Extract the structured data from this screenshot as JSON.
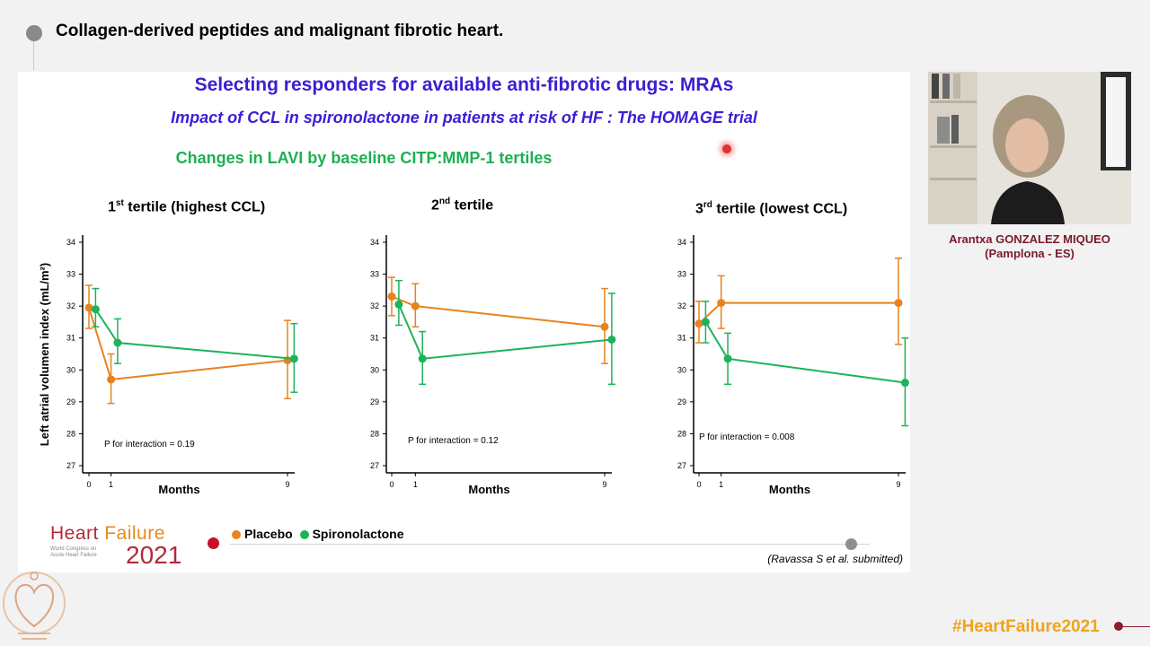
{
  "header": {
    "talk_title": "Collagen-derived peptides and malignant fibrotic heart."
  },
  "slide": {
    "heading": "Selecting responders for available anti-fibrotic drugs: MRAs",
    "subheading": "Impact of CCL in spironolactone in patients at risk of HF : The HOMAGE trial",
    "chart_caption": "Changes in LAVI by baseline CITP:MMP-1 tertiles",
    "legend": {
      "placebo": "Placebo",
      "spironolactone": "Spironolactone"
    },
    "citation": "(Ravassa S et al. submitted)",
    "logo": {
      "word1": "Heart",
      "word2": "Failure",
      "year": "2021",
      "small_text": "World Congress on Acute Heart Failure"
    },
    "colors": {
      "placebo": "#e8821e",
      "spironolactone": "#1db35a",
      "heading": "#3a1fd4",
      "caption": "#1db053"
    }
  },
  "panels": [
    {
      "title_pre": "1",
      "title_sup": "st",
      "title_post": " tertile (highest CCL)",
      "p_text": "P for interaction = 0.19"
    },
    {
      "title_pre": "2",
      "title_sup": "nd",
      "title_post": " tertile",
      "p_text": "P for interaction = 0.12"
    },
    {
      "title_pre": "3",
      "title_sup": "rd",
      "title_post": " tertile (lowest CCL)",
      "p_text": "P for interaction = 0.008"
    }
  ],
  "chart_data": [
    {
      "type": "line",
      "title": "1st tertile (highest CCL)",
      "xlabel": "Months",
      "ylabel": "Left atrial volumen index (mL/m²)",
      "x_ticks": [
        "0",
        "1",
        "9"
      ],
      "y_ticks": [
        "27",
        "28",
        "29",
        "30",
        "31",
        "32",
        "33",
        "34"
      ],
      "ylim": [
        27,
        34
      ],
      "series": [
        {
          "name": "Placebo",
          "x": [
            0,
            1,
            9
          ],
          "y": [
            31.95,
            29.7,
            30.3
          ],
          "err_low": [
            31.3,
            28.95,
            29.1
          ],
          "err_high": [
            32.65,
            30.5,
            31.55
          ]
        },
        {
          "name": "Spironolactone",
          "x": [
            0.3,
            1.3,
            9.3
          ],
          "y": [
            31.9,
            30.85,
            30.35
          ],
          "err_low": [
            31.35,
            30.2,
            29.3
          ],
          "err_high": [
            32.55,
            31.6,
            31.45
          ]
        }
      ],
      "annotations": [
        {
          "text": "*",
          "x": 1.3
        }
      ],
      "p_text": "P for interaction = 0.19"
    },
    {
      "type": "line",
      "title": "2nd tertile",
      "xlabel": "Months",
      "x_ticks": [
        "0",
        "1",
        "9"
      ],
      "y_ticks": [
        "27",
        "28",
        "29",
        "30",
        "31",
        "32",
        "33",
        "34"
      ],
      "ylim": [
        27,
        34
      ],
      "series": [
        {
          "name": "Placebo",
          "x": [
            0,
            1,
            9
          ],
          "y": [
            32.3,
            32.0,
            31.35
          ],
          "err_low": [
            31.7,
            31.35,
            30.2
          ],
          "err_high": [
            32.9,
            32.7,
            32.55
          ]
        },
        {
          "name": "Spironolactone",
          "x": [
            0.3,
            1.3,
            9.3
          ],
          "y": [
            32.05,
            30.35,
            30.95
          ],
          "err_low": [
            31.4,
            29.55,
            29.55
          ],
          "err_high": [
            32.8,
            31.2,
            32.4
          ]
        }
      ],
      "annotations": [
        {
          "text": "**",
          "x": 1.3
        }
      ],
      "p_text": "P for interaction = 0.12"
    },
    {
      "type": "line",
      "title": "3rd tertile (lowest CCL)",
      "xlabel": "Months",
      "x_ticks": [
        "0",
        "1",
        "9"
      ],
      "y_ticks": [
        "27",
        "28",
        "29",
        "30",
        "31",
        "32",
        "33",
        "34"
      ],
      "ylim": [
        27,
        34
      ],
      "series": [
        {
          "name": "Placebo",
          "x": [
            0,
            1,
            9
          ],
          "y": [
            31.45,
            32.1,
            32.1
          ],
          "err_low": [
            30.85,
            31.3,
            30.8
          ],
          "err_high": [
            32.15,
            32.95,
            33.5
          ]
        },
        {
          "name": "Spironolactone",
          "x": [
            0.3,
            1.3,
            9.3
          ],
          "y": [
            31.5,
            30.35,
            29.6
          ],
          "err_low": [
            30.85,
            29.55,
            28.25
          ],
          "err_high": [
            32.15,
            31.15,
            31.0
          ]
        }
      ],
      "annotations": [
        {
          "text": "**",
          "x": 1.3
        },
        {
          "text": "*",
          "x": 9.3
        }
      ],
      "p_text": "P for interaction = 0.008"
    }
  ],
  "speaker": {
    "name": "Arantxa GONZALEZ MIQUEO",
    "location": "(Pamplona - ES)"
  },
  "footer": {
    "hashtag": "#HeartFailure2021"
  }
}
